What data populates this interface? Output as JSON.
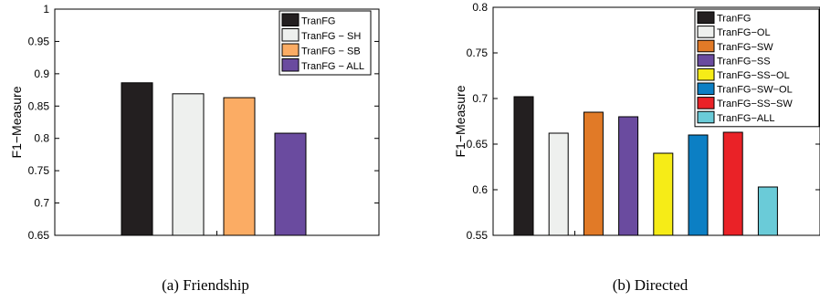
{
  "chart_data": [
    {
      "type": "bar",
      "ylabel": "F1−Measure",
      "ylim": [
        0.65,
        1
      ],
      "yticks": [
        "0.65",
        "0.7",
        "0.75",
        "0.8",
        "0.85",
        "0.9",
        "0.95",
        "1"
      ],
      "legend_position": "top-right",
      "caption": "(a)  Friendship",
      "series": [
        {
          "name": "TranFG",
          "value": 0.886,
          "color": "#231f20"
        },
        {
          "name": "TranFG − SH",
          "value": 0.869,
          "color": "#eef0ee"
        },
        {
          "name": "TranFG − SB",
          "value": 0.863,
          "color": "#fbac64"
        },
        {
          "name": "TranFG − ALL",
          "value": 0.808,
          "color": "#6a4b9f"
        }
      ]
    },
    {
      "type": "bar",
      "ylabel": "F1−Measure",
      "ylim": [
        0.55,
        0.8
      ],
      "yticks": [
        "0.55",
        "0.6",
        "0.65",
        "0.7",
        "0.75",
        "0.8"
      ],
      "legend_position": "top-right",
      "caption": "(b)  Directed",
      "series": [
        {
          "name": "TranFG",
          "value": 0.702,
          "color": "#231f20"
        },
        {
          "name": "TranFG−OL",
          "value": 0.662,
          "color": "#eef0ee"
        },
        {
          "name": "TranFG−SW",
          "value": 0.685,
          "color": "#e17a27"
        },
        {
          "name": "TranFG−SS",
          "value": 0.68,
          "color": "#6a4b9f"
        },
        {
          "name": "TranFG−SS−OL",
          "value": 0.64,
          "color": "#f6ec17"
        },
        {
          "name": "TranFG−SW−OL",
          "value": 0.66,
          "color": "#0c7fc4"
        },
        {
          "name": "TranFG−SS−SW",
          "value": 0.663,
          "color": "#ea2227"
        },
        {
          "name": "TranFG−ALL",
          "value": 0.603,
          "color": "#6acbd8"
        }
      ]
    }
  ]
}
